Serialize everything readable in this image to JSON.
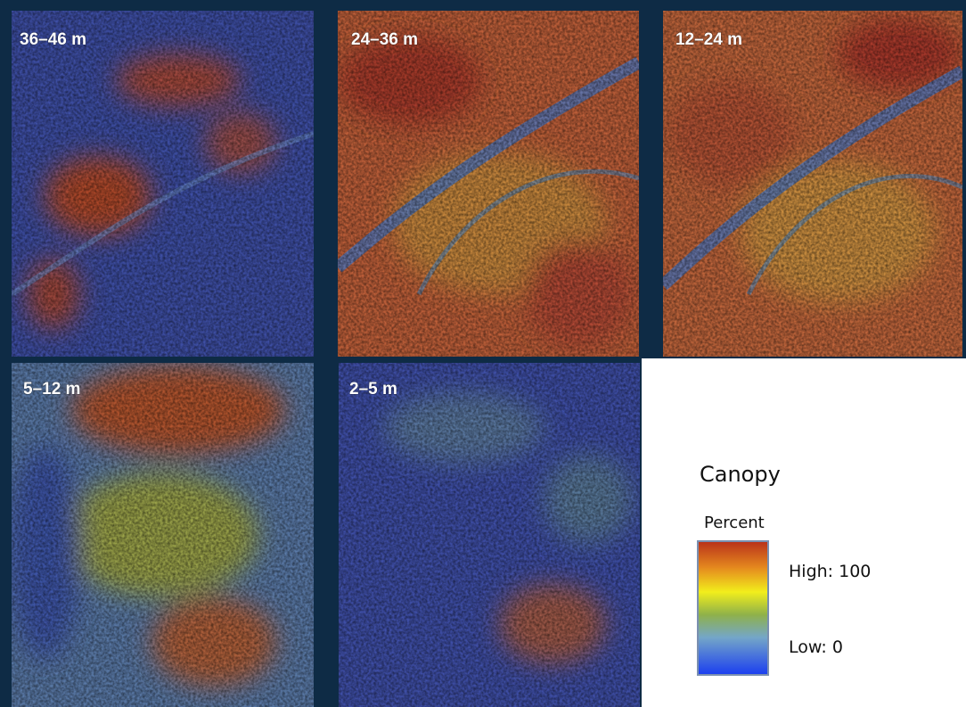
{
  "panels": [
    {
      "label": "36–46 m"
    },
    {
      "label": "24–36 m"
    },
    {
      "label": "12–24 m"
    },
    {
      "label": "5–12 m"
    },
    {
      "label": "2–5 m"
    }
  ],
  "legend": {
    "title": "Canopy",
    "subtitle": "Percent",
    "high": "High: 100",
    "low": "Low: 0"
  }
}
